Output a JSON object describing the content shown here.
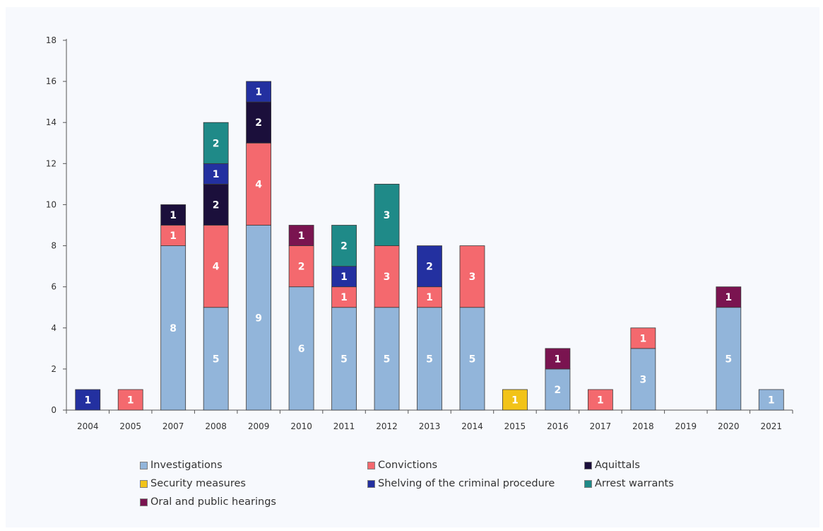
{
  "chart_data": {
    "type": "bar",
    "stacked": true,
    "title": "",
    "xlabel": "",
    "ylabel": "",
    "ylim": [
      0,
      18
    ],
    "yticks": [
      0,
      2,
      4,
      6,
      8,
      10,
      12,
      14,
      16,
      18
    ],
    "grid": false,
    "legend_position": "bottom",
    "categories": [
      "2004",
      "2005",
      "2007",
      "2008",
      "2009",
      "2010",
      "2011",
      "2012",
      "2013",
      "2014",
      "2015",
      "2016",
      "2017",
      "2018",
      "2019",
      "2020",
      "2021"
    ],
    "series": [
      {
        "name": "Investigations",
        "color": "#92b5da",
        "values": [
          0,
          0,
          8,
          5,
          9,
          6,
          5,
          5,
          5,
          5,
          0,
          2,
          0,
          3,
          0,
          5,
          1
        ]
      },
      {
        "name": "Convictions",
        "color": "#f4696e",
        "values": [
          0,
          1,
          1,
          4,
          4,
          2,
          1,
          3,
          1,
          3,
          0,
          0,
          1,
          1,
          0,
          0,
          0
        ]
      },
      {
        "name": "Aquittals",
        "color": "#1b0f3b",
        "values": [
          0,
          0,
          1,
          2,
          2,
          0,
          0,
          0,
          0,
          0,
          0,
          0,
          0,
          0,
          0,
          0,
          0
        ]
      },
      {
        "name": "Security measures",
        "color": "#f2c318",
        "values": [
          0,
          0,
          0,
          0,
          0,
          0,
          0,
          0,
          0,
          0,
          1,
          0,
          0,
          0,
          0,
          0,
          0
        ]
      },
      {
        "name": "Shelving of the criminal procedure",
        "color": "#2330a0",
        "values": [
          1,
          0,
          0,
          1,
          1,
          0,
          1,
          0,
          2,
          0,
          0,
          0,
          0,
          0,
          0,
          0,
          0
        ]
      },
      {
        "name": "Arrest warrants",
        "color": "#1f8a88",
        "values": [
          0,
          0,
          0,
          2,
          0,
          0,
          2,
          3,
          0,
          0,
          0,
          0,
          0,
          0,
          0,
          0,
          0
        ]
      },
      {
        "name": "Oral and public hearings",
        "color": "#7a1450",
        "values": [
          0,
          0,
          0,
          0,
          0,
          1,
          0,
          0,
          0,
          0,
          0,
          1,
          0,
          0,
          0,
          1,
          0
        ]
      }
    ]
  }
}
